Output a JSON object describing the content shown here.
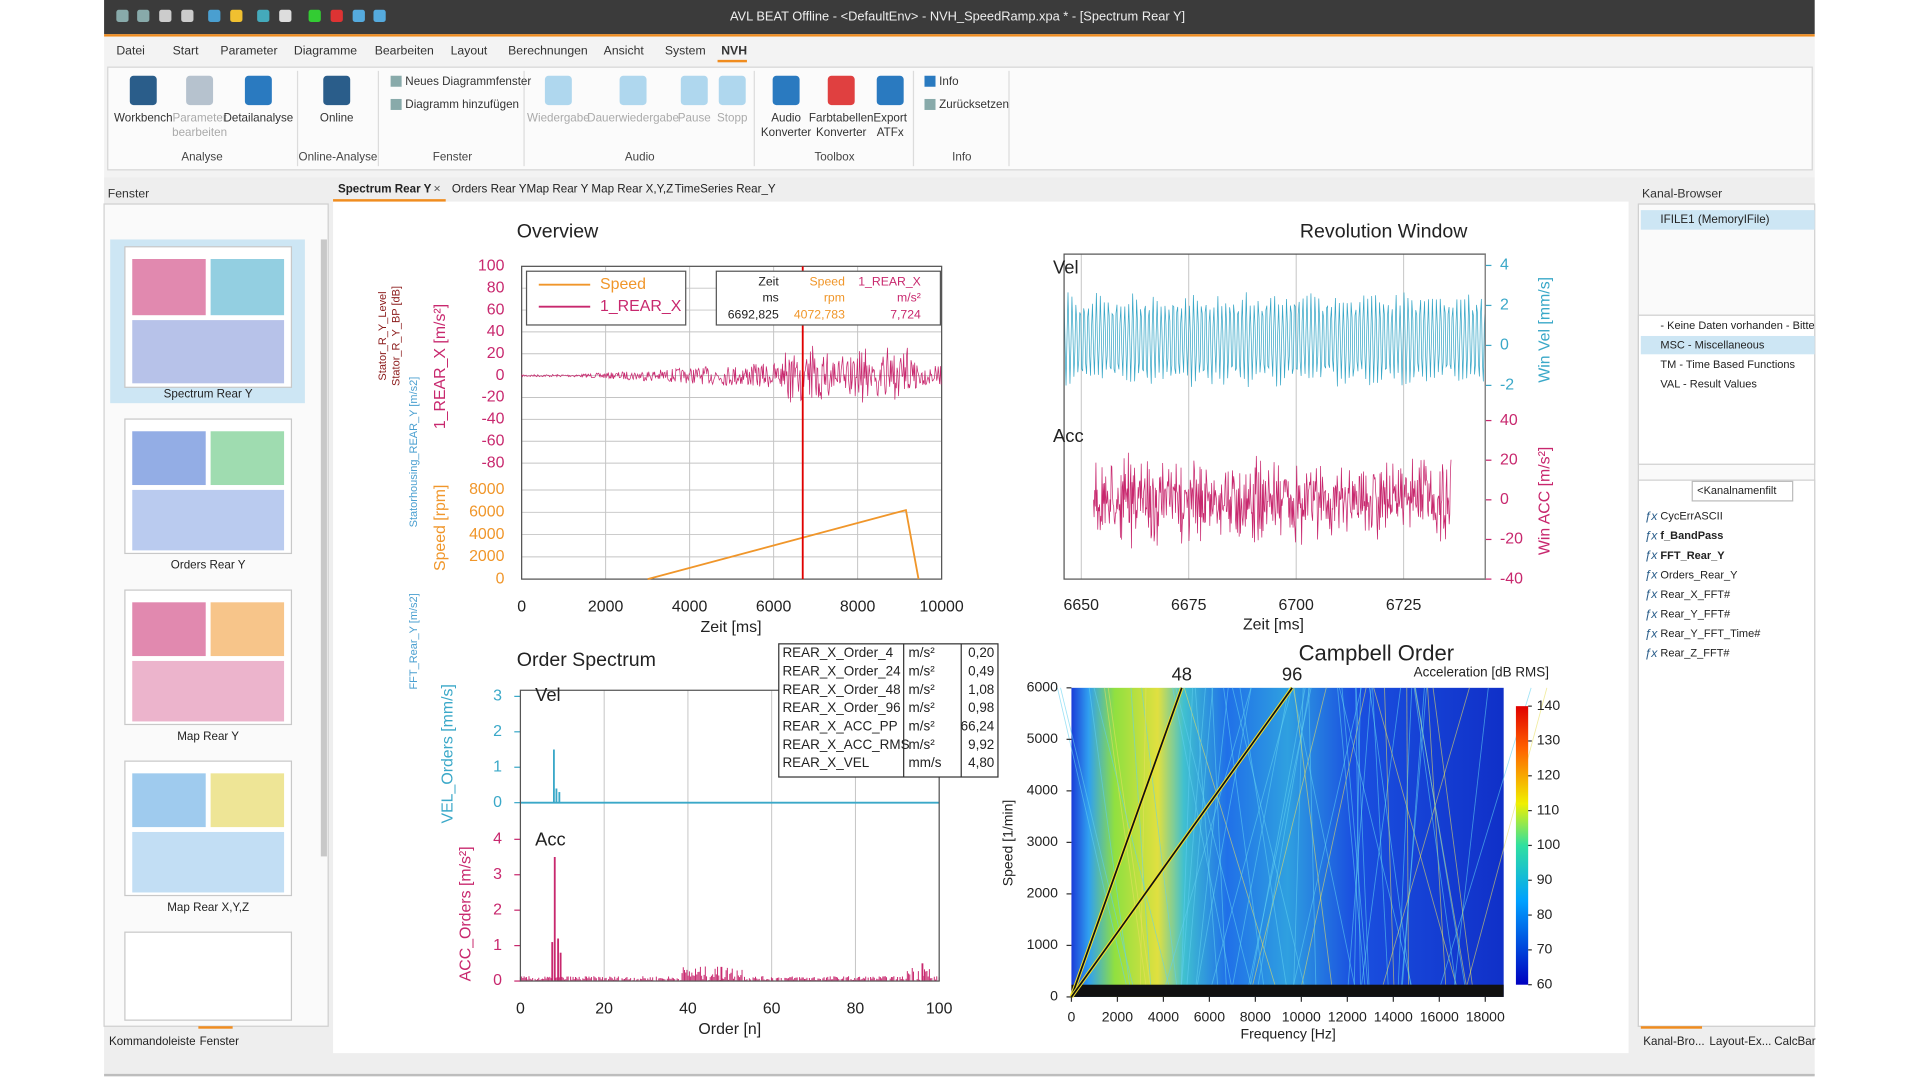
{
  "window": {
    "title": "AVL BEAT Offline - <DefaultEnv> - NVH_SpeedRamp.xpa * - [Spectrum Rear Y]"
  },
  "menu": [
    "Datei",
    "Start",
    "Parameter",
    "Diagramme",
    "Bearbeiten",
    "Layout",
    "Berechnungen",
    "Ansicht",
    "System",
    "NVH"
  ],
  "ribbon": {
    "groups": [
      {
        "label": "Analyse",
        "buttons": [
          {
            "lines": [
              "Workbench"
            ]
          },
          {
            "lines": [
              "Parameter",
              "bearbeiten"
            ]
          },
          {
            "lines": [
              "Detailanalyse"
            ]
          }
        ]
      },
      {
        "label": "Online-Analyse",
        "buttons": [
          {
            "lines": [
              "Online"
            ]
          }
        ]
      },
      {
        "label": "Fenster",
        "small_buttons": [
          "Neues Diagrammfenster",
          "Diagramm hinzufügen"
        ]
      },
      {
        "label": "Audio",
        "buttons": [
          {
            "lines": [
              "Wiedergabe"
            ]
          },
          {
            "lines": [
              "Dauerwiedergabe"
            ]
          },
          {
            "lines": [
              "Pause"
            ]
          },
          {
            "lines": [
              "Stopp"
            ]
          }
        ]
      },
      {
        "label": "Toolbox",
        "buttons": [
          {
            "lines": [
              "Audio",
              "Konverter"
            ]
          },
          {
            "lines": [
              "Farbtabellen",
              "Konverter"
            ]
          },
          {
            "lines": [
              "Export",
              "ATFx"
            ]
          }
        ]
      },
      {
        "label": "Info",
        "small_buttons": [
          "Info",
          "Zurücksetzen"
        ]
      }
    ]
  },
  "left_panel": {
    "title": "Fenster",
    "thumbnails": [
      "Spectrum Rear Y",
      "Orders Rear Y",
      "Map Rear Y",
      "Map Rear X,Y,Z"
    ],
    "bottom_tabs": [
      "Kommandoleiste",
      "Fenster"
    ]
  },
  "tabs": [
    "Spectrum Rear Y",
    "Orders Rear Y",
    "Map Rear Y",
    "Map Rear X,Y,Z",
    "TimeSeries Rear_Y"
  ],
  "right_panel": {
    "title": "Kanal-Browser",
    "tree": "IFILE1 (MemoryIFile)",
    "groups": [
      "- Keine Daten vorhanden - Bitte",
      "MSC - Miscellaneous",
      "TM - Time Based Functions",
      "VAL - Result Values"
    ],
    "filter": "<Kanalnamenfilt",
    "channels": [
      "CycErrASCII",
      "f_BandPass",
      "FFT_Rear_Y",
      "Orders_Rear_Y",
      "Rear_X_FFT#",
      "Rear_Y_FFT#",
      "Rear_Y_FFT_Time#",
      "Rear_Z_FFT#"
    ],
    "bottom_tabs": [
      "Kanal-Bro...",
      "Layout-Ex...",
      "CalcBar"
    ]
  },
  "plots": {
    "side_labels": [
      "Stator_R_Y_Level",
      "Stator_R_Y_BP [dB]",
      "Statorhousing_REAR_Y [m/s2]",
      "FFT_Rear_Y [m/s2]"
    ],
    "overview": {
      "type": "line",
      "title": "Overview",
      "xlabel": "Zeit [ms]",
      "xlim": [
        0,
        10000
      ],
      "xticks": [
        0,
        2000,
        4000,
        6000,
        8000,
        10000
      ],
      "upper": {
        "ylabel": "1_REAR_X [m/s²]",
        "ylim": [
          -90,
          100
        ],
        "yticks": [
          100,
          80,
          60,
          40,
          20,
          0,
          -20,
          -40,
          -60,
          -80
        ],
        "color": "#c8286e"
      },
      "lower": {
        "ylabel": "Speed [rpm]",
        "ylim": [
          0,
          9000
        ],
        "yticks": [
          8000,
          6000,
          4000,
          2000,
          0
        ],
        "color": "#f0962a"
      },
      "series": [
        {
          "name": "Speed",
          "color": "#f0962a",
          "x": [
            3000,
            9150,
            9450
          ],
          "values": [
            0,
            6200,
            0
          ]
        },
        {
          "name": "1_REAR_X",
          "color": "#c8286e"
        }
      ],
      "cursor": {
        "headers": [
          "Zeit",
          "Speed",
          "1_REAR_X"
        ],
        "units": [
          "ms",
          "rpm",
          "m/s²"
        ],
        "values": [
          {
            "value": 6692.825,
            "label": "6692,825"
          },
          "4072,783",
          "7,724"
        ]
      }
    },
    "revolution": {
      "type": "line",
      "title": "Revolution Window",
      "xlabel": "Zeit [ms]",
      "xlim": [
        6646,
        6744
      ],
      "xticks": [
        6650,
        6675,
        6700,
        6725
      ],
      "vel": {
        "label": "Vel",
        "ylabel": "Win Vel [mm/s]",
        "ylim": [
          -2.4,
          4.2
        ],
        "yticks": [
          4,
          2,
          0,
          -2
        ],
        "color": "#3aa8c8"
      },
      "acc": {
        "label": "Acc",
        "ylabel": "Win ACC [m/s²]",
        "ylim": [
          -40,
          42
        ],
        "yticks": [
          40,
          20,
          0,
          -20,
          -40
        ],
        "color": "#c8286e"
      }
    },
    "order_spectrum": {
      "type": "bar",
      "title": "Order Spectrum",
      "xlabel": "Order [n]",
      "xlim": [
        0,
        100
      ],
      "xticks": [
        0,
        20,
        40,
        60,
        80,
        100
      ],
      "vel": {
        "label": "Vel",
        "ylabel": "VEL_Orders [mm/s]",
        "ylim": [
          0,
          3
        ],
        "yticks": [
          3,
          2,
          1,
          0
        ],
        "color": "#3aa8c8",
        "x": [
          8,
          8.6,
          9.3
        ],
        "values": [
          1.5,
          0.4,
          0.3
        ]
      },
      "acc": {
        "label": "Acc",
        "ylabel": "ACC_Orders [m/s²]",
        "ylim": [
          0,
          4
        ],
        "yticks": [
          4,
          3,
          2,
          1,
          0
        ],
        "color": "#c8286e",
        "x": [
          7.6,
          8.2,
          9,
          9.6,
          48,
          96
        ],
        "values": [
          1.1,
          3.5,
          1.2,
          0.8,
          0.4,
          0.5
        ]
      },
      "results": [
        {
          "name": "REAR_X_Order_4",
          "unit": "m/s²",
          "value": "0,20"
        },
        {
          "name": "REAR_X_Order_24",
          "unit": "m/s²",
          "value": "0,49"
        },
        {
          "name": "REAR_X_Order_48",
          "unit": "m/s²",
          "value": "1,08"
        },
        {
          "name": "REAR_X_Order_96",
          "unit": "m/s²",
          "value": "0,98"
        },
        {
          "name": "REAR_X_ACC_PP",
          "unit": "m/s²",
          "value": "66,24"
        },
        {
          "name": "REAR_X_ACC_RMS",
          "unit": "m/s²",
          "value": "9,92"
        },
        {
          "name": "REAR_X_VEL",
          "unit": "mm/s",
          "value": "4,80"
        }
      ]
    },
    "campbell": {
      "type": "heatmap",
      "title": "Campbell Order",
      "colorbar_label": "Acceleration [dB RMS]",
      "xlabel": "Frequency [Hz]",
      "ylabel": "Speed [1/min]",
      "xlim": [
        0,
        18800
      ],
      "xticks": [
        0,
        2000,
        4000,
        6000,
        8000,
        10000,
        12000,
        14000,
        16000,
        18000
      ],
      "ylim": [
        0,
        6000
      ],
      "yticks": [
        0,
        1000,
        2000,
        3000,
        4000,
        5000,
        6000
      ],
      "clim": [
        60,
        140
      ],
      "cticks": [
        140,
        130,
        120,
        110,
        100,
        90,
        80,
        70,
        60
      ],
      "orders": [
        48,
        96
      ]
    }
  }
}
